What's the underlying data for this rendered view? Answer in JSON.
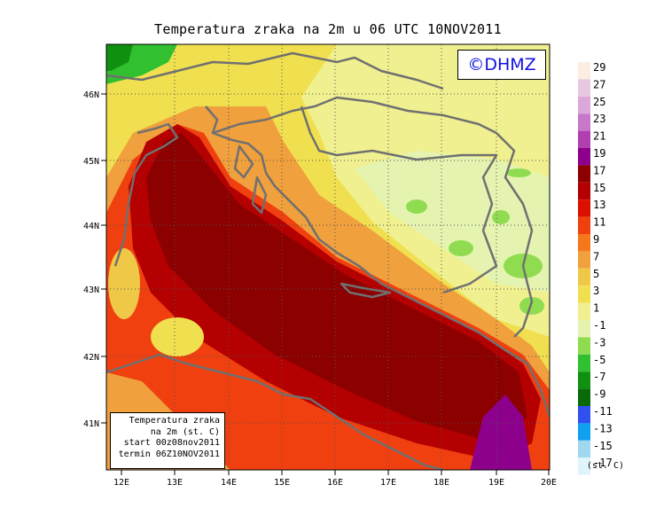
{
  "title": "Temperatura zraka na 2m u 06 UTC 10NOV2011",
  "logo_text": "©DHMZ",
  "info": {
    "line1": "Temperatura zraka",
    "line2": "na 2m (st. C)",
    "line3": "start 00z08nov2011",
    "line4": "termin 06Z10NOV2011"
  },
  "lat_labels": [
    "46N",
    "45N",
    "44N",
    "43N",
    "42N",
    "41N"
  ],
  "lon_labels": [
    "12E",
    "13E",
    "14E",
    "15E",
    "16E",
    "17E",
    "18E",
    "19E",
    "20E"
  ],
  "legend": {
    "labels": [
      "29",
      "27",
      "25",
      "23",
      "21",
      "19",
      "17",
      "15",
      "13",
      "11",
      "9",
      "7",
      "5",
      "3",
      "1",
      "-1",
      "-3",
      "-5",
      "-7",
      "-9",
      "-11",
      "-13",
      "-15",
      "-17"
    ],
    "unit": "(st. C)",
    "colors": [
      "#fbeee0",
      "#e8c8e0",
      "#dca8dc",
      "#c878c8",
      "#b040b0",
      "#8c008c",
      "#8c0000",
      "#b40000",
      "#dc1000",
      "#f04010",
      "#f4781a",
      "#f0a03c",
      "#f0c848",
      "#f0e050",
      "#f0f090",
      "#e4f4b0",
      "#90dc50",
      "#30c030",
      "#109010",
      "#0a6a0a",
      "#3050f0",
      "#10a0f0",
      "#a0d8f0",
      "#e0f4fc"
    ]
  }
}
